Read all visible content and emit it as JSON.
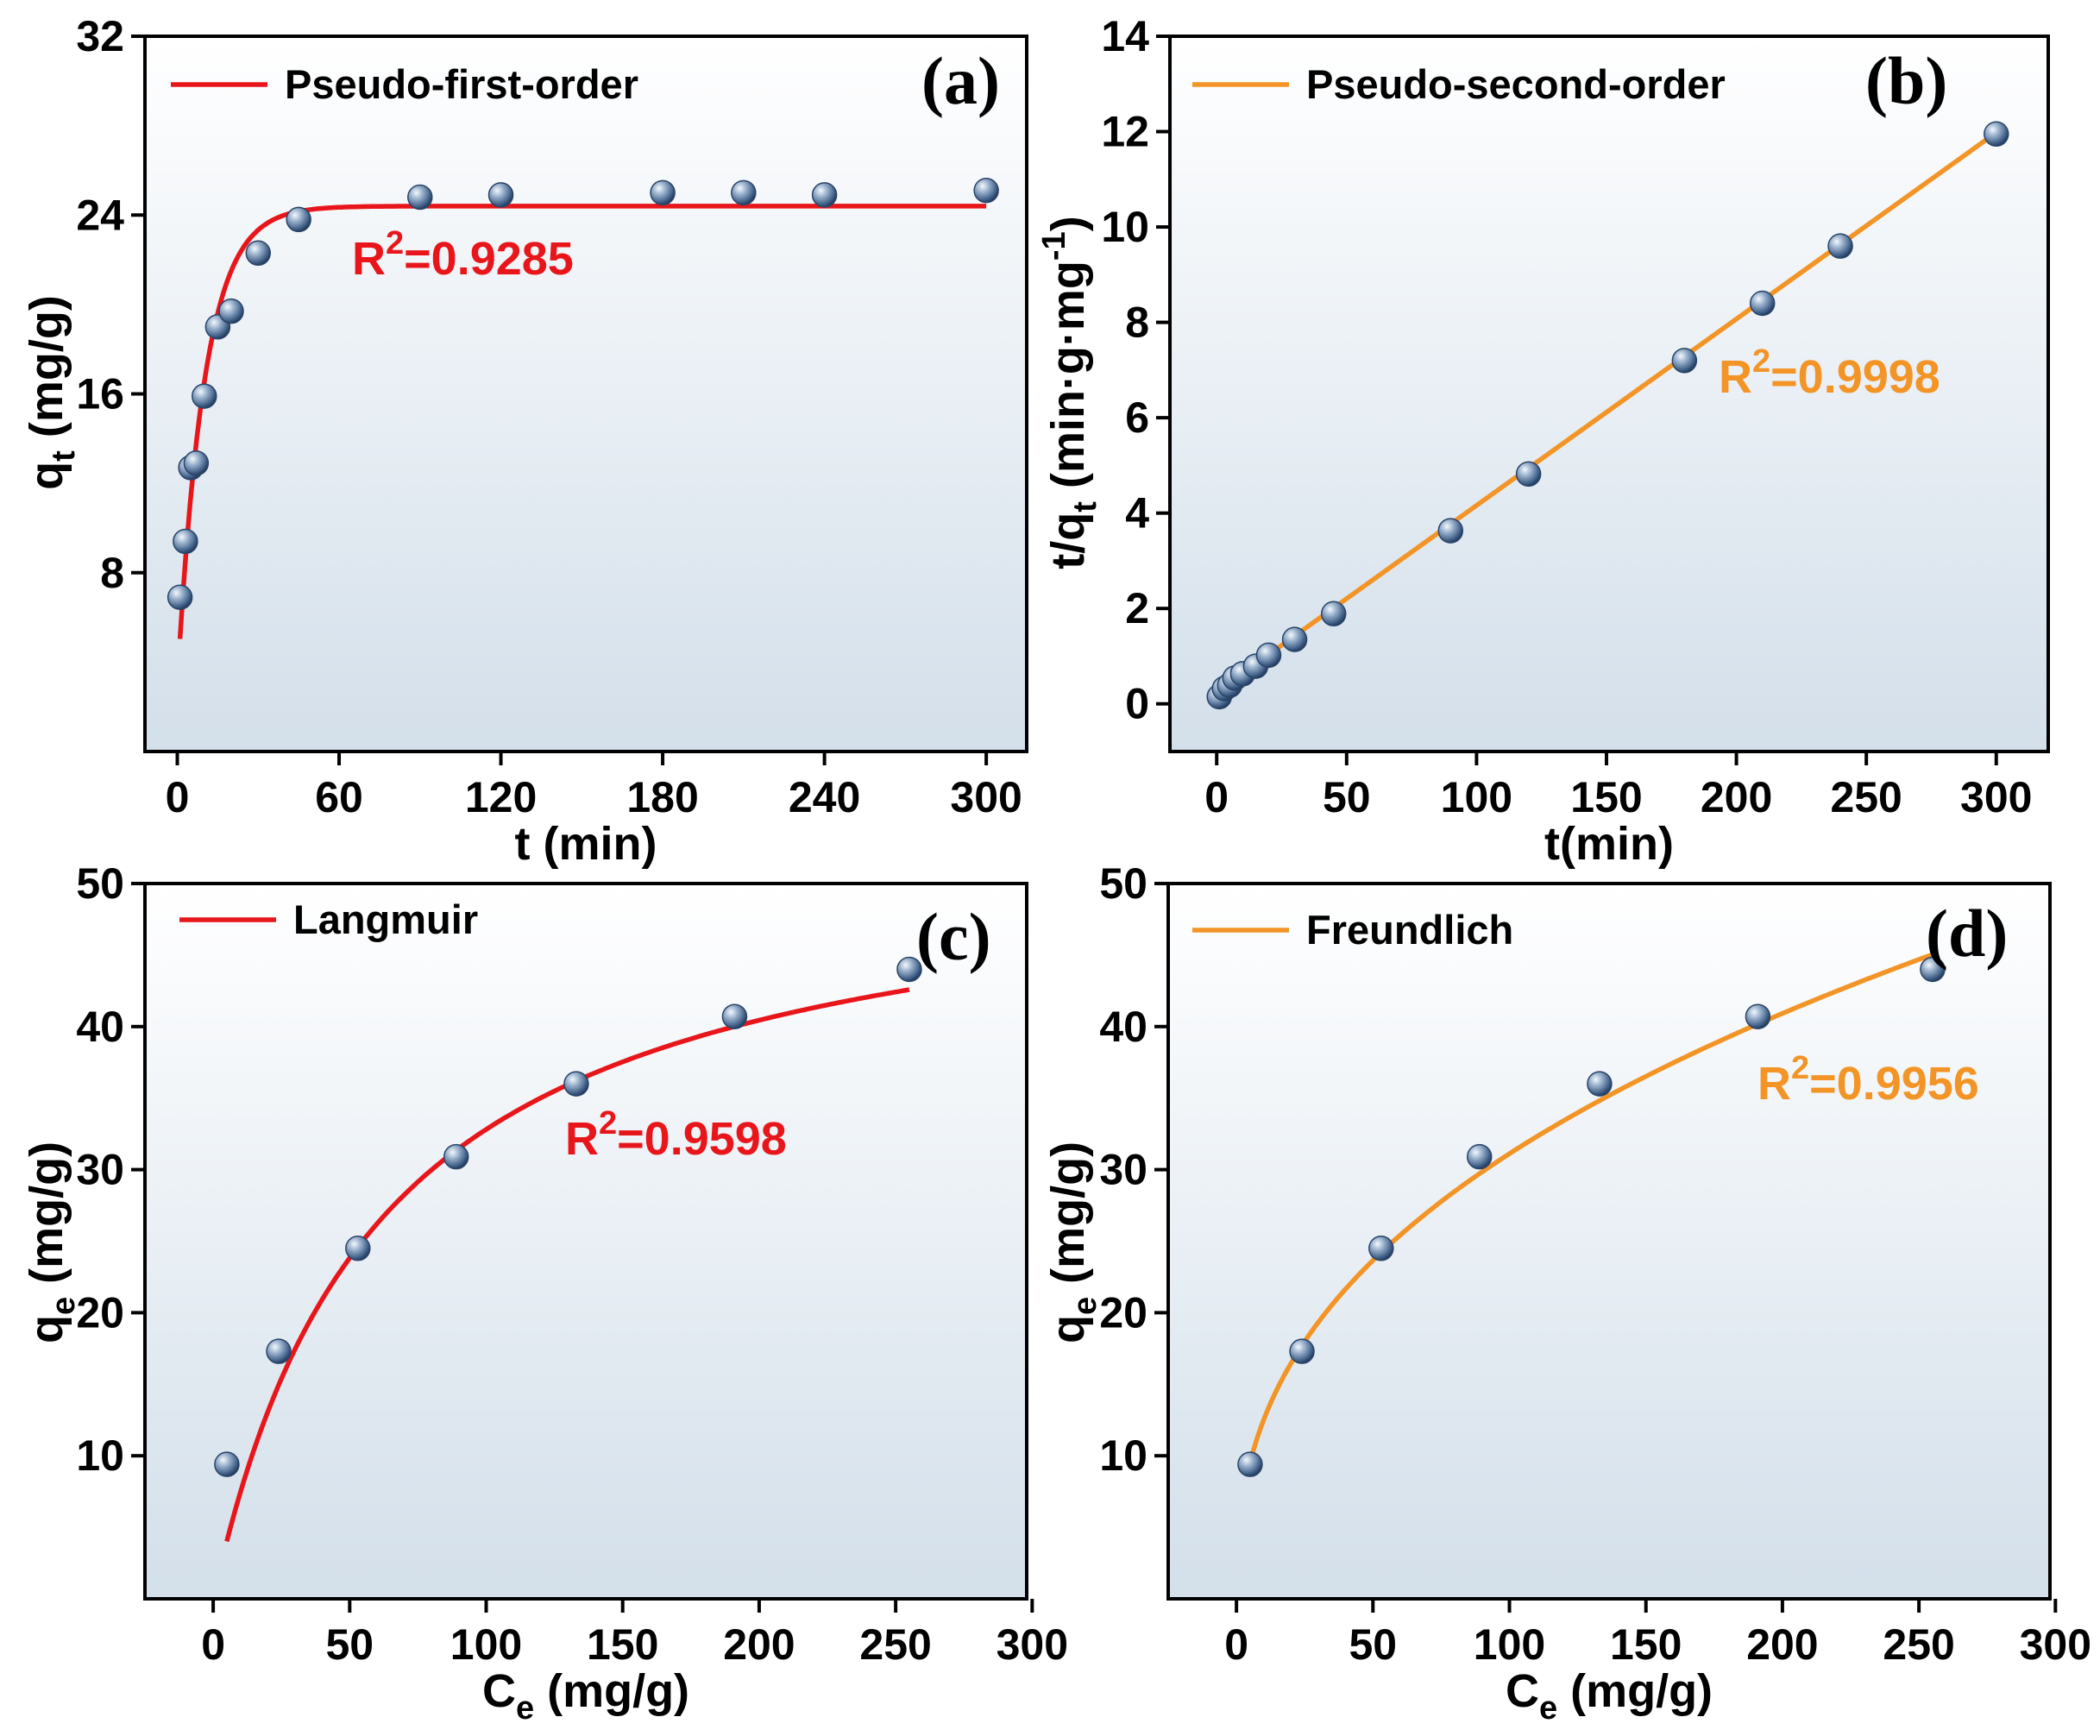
{
  "chart_data": [
    {
      "id": "a",
      "type": "scatter",
      "panel_label": "(a)",
      "xlabel": "t (min)",
      "ylabel": {
        "main": "q",
        "sub": "t",
        "rest": " (mg/g)"
      },
      "xlim": [
        -12,
        315
      ],
      "ylim": [
        0,
        32
      ],
      "xticks": [
        "0",
        "60",
        "120",
        "180",
        "240",
        "300"
      ],
      "xtick_values": [
        0,
        60,
        120,
        180,
        240,
        300
      ],
      "yticks": [
        "8",
        "16",
        "24",
        "32"
      ],
      "ytick_values": [
        8,
        16,
        24,
        32
      ],
      "legend": "Pseudo-first-order",
      "legend_position": "top-left",
      "fit_color": "#e8161b",
      "r2_label": {
        "base": "R",
        "sup": "2",
        "value": "=0.9285"
      },
      "points": {
        "x": [
          1,
          3,
          5,
          7,
          10,
          15,
          20,
          30,
          45,
          90,
          120,
          180,
          210,
          240,
          300
        ],
        "y": [
          6.9,
          9.4,
          12.7,
          12.9,
          15.9,
          19.0,
          19.7,
          22.3,
          23.8,
          24.8,
          24.9,
          25.0,
          25.0,
          24.9,
          25.1
        ]
      },
      "fit": {
        "model": "pseudo-first-order",
        "qe": 24.4,
        "k": 0.1,
        "y0": 3.0,
        "x_range": [
          1,
          300
        ]
      }
    },
    {
      "id": "b",
      "type": "scatter",
      "panel_label": "(b)",
      "xlabel": "t(min)",
      "ylabel": {
        "main": "t/q",
        "sub": "t",
        "rest": " (min·g·mg",
        "sup": "-1",
        "close": ")"
      },
      "xlim": [
        -18,
        320
      ],
      "ylim": [
        -1,
        14
      ],
      "xticks": [
        "0",
        "50",
        "100",
        "150",
        "200",
        "250",
        "300"
      ],
      "xtick_values": [
        0,
        50,
        100,
        150,
        200,
        250,
        300
      ],
      "yticks": [
        "0",
        "2",
        "4",
        "6",
        "8",
        "10",
        "12",
        "14"
      ],
      "ytick_values": [
        0,
        2,
        4,
        6,
        8,
        10,
        12,
        14
      ],
      "legend": "Pseudo-second-order",
      "legend_position": "top-left",
      "fit_color": "#f39426",
      "r2_label": {
        "base": "R",
        "sup": "2",
        "value": "=0.9998"
      },
      "points": {
        "x": [
          1,
          3,
          5,
          7,
          10,
          15,
          20,
          30,
          45,
          90,
          120,
          180,
          210,
          240,
          300
        ],
        "y": [
          0.15,
          0.32,
          0.39,
          0.54,
          0.63,
          0.79,
          1.02,
          1.35,
          1.89,
          3.63,
          4.82,
          7.2,
          8.4,
          9.6,
          11.95
        ]
      },
      "fit": {
        "model": "linear",
        "points": [
          [
            0,
            0.25
          ],
          [
            300,
            11.98
          ]
        ]
      }
    },
    {
      "id": "c",
      "type": "scatter",
      "panel_label": "(c)",
      "xlabel": {
        "main": "C",
        "sub": "e",
        "rest": " (mg/g)"
      },
      "ylabel": {
        "main": "q",
        "sub": "e",
        "rest": " (mg/g)"
      },
      "xlim": [
        -25,
        298
      ],
      "ylim": [
        0,
        50
      ],
      "xticks": [
        "0",
        "50",
        "100",
        "150",
        "200",
        "250",
        "300"
      ],
      "xtick_values": [
        0,
        50,
        100,
        150,
        200,
        250,
        300
      ],
      "yticks": [
        "10",
        "20",
        "30",
        "40",
        "50"
      ],
      "ytick_values": [
        10,
        20,
        30,
        40,
        50
      ],
      "legend": "Langmuir",
      "legend_position": "top-left",
      "fit_color": "#e8161b",
      "r2_label": {
        "base": "R",
        "sup": "2",
        "value": "=0.9598"
      },
      "points": {
        "x": [
          5,
          24,
          53,
          89,
          133,
          191,
          255
        ],
        "y": [
          9.4,
          17.3,
          24.5,
          30.9,
          36.0,
          40.7,
          44.0
        ]
      },
      "fit": {
        "model": "langmuir",
        "qm": 52.7,
        "kl": 0.0165,
        "x_range": [
          5,
          255
        ]
      }
    },
    {
      "id": "d",
      "type": "scatter",
      "panel_label": "(d)",
      "xlabel": {
        "main": "C",
        "sub": "e",
        "rest": " (mg/g)"
      },
      "ylabel": {
        "main": "q",
        "sub": "e",
        "rest": " (mg/g)"
      },
      "xlim": [
        -25,
        298
      ],
      "ylim": [
        0,
        50
      ],
      "xticks": [
        "0",
        "50",
        "100",
        "150",
        "200",
        "250",
        "300"
      ],
      "xtick_values": [
        0,
        50,
        100,
        150,
        200,
        250,
        300
      ],
      "yticks": [
        "10",
        "20",
        "30",
        "40",
        "50"
      ],
      "ytick_values": [
        10,
        20,
        30,
        40,
        50
      ],
      "legend": "Freundlich",
      "legend_position": "top-left",
      "fit_color": "#f39426",
      "r2_label": {
        "base": "R",
        "sup": "2",
        "value": "=0.9956"
      },
      "points": {
        "x": [
          5,
          24,
          53,
          89,
          133,
          191,
          255
        ],
        "y": [
          9.4,
          17.3,
          24.5,
          30.9,
          36.0,
          40.7,
          44.0
        ]
      },
      "fit": {
        "model": "freundlich",
        "kf": 5.04,
        "n": 2.53,
        "x_range": [
          5,
          255
        ]
      }
    }
  ]
}
